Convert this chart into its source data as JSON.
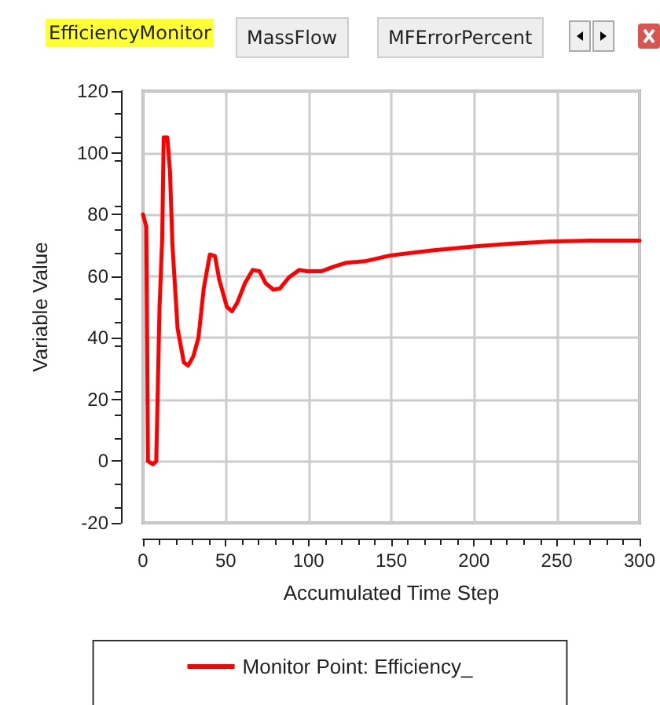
{
  "chart_data": {
    "type": "line",
    "xlabel": "Accumulated Time Step",
    "ylabel": "Variable Value",
    "annotations": [
      "EfficiencyMonitor",
      "MassFlow",
      "MFErrorPercent"
    ],
    "series": [
      {
        "name": "Monitor Point: Efficiency_",
        "color": "#ff0000",
        "x": [
          0,
          2,
          3,
          6,
          8,
          10,
          11.6,
          12.5,
          14.7,
          16.3,
          17.8,
          20.9,
          24.7,
          27.3,
          30.4,
          33.5,
          36.7,
          40.4,
          43.5,
          46,
          50.7,
          53.8,
          56.9,
          61.6,
          66.3,
          70.4,
          74.1,
          78.8,
          82.8,
          88.2,
          94.4,
          99.1,
          108,
          116,
          122.6,
          134,
          149.5,
          174.6,
          199.7,
          221.6,
          245,
          270,
          300
        ],
        "values": [
          80,
          76,
          0,
          -1,
          0,
          50,
          72,
          105,
          105,
          94,
          70,
          43,
          32,
          31,
          34,
          40,
          56,
          67,
          66.5,
          59,
          50,
          48.6,
          51.3,
          57.7,
          62,
          61.6,
          57.7,
          55.6,
          56,
          59.6,
          62,
          61.6,
          61.6,
          63.2,
          64.3,
          64.8,
          66.7,
          68.3,
          69.6,
          70.5,
          71.2,
          71.5,
          71.5
        ]
      }
    ],
    "xlim": [
      0,
      300
    ],
    "xticks": [
      0,
      50,
      100,
      150,
      200,
      250,
      300
    ],
    "ylim": [
      -20,
      120
    ],
    "yticks": [
      -20,
      0,
      20,
      40,
      60,
      80,
      100,
      120
    ],
    "grid": true,
    "legend": "bottom",
    "marker": "none",
    "line_style": "solid"
  }
}
